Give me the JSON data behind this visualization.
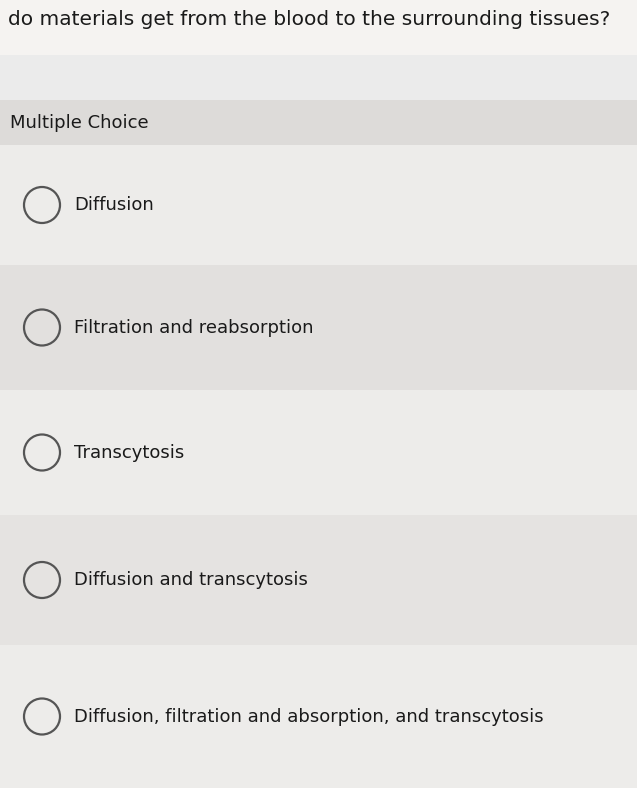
{
  "question_text": "do materials get from the blood to the surrounding tissues?",
  "section_label": "Multiple Choice",
  "choices": [
    "Diffusion",
    "Filtration and reabsorption",
    "Transcytosis",
    "Diffusion and transcytosis",
    "Diffusion, filtration and absorption, and transcytosis"
  ],
  "bg_color_top": "#f2f0ee",
  "bg_color_gap": "#e8e6e4",
  "bg_color_mc_row": "#dddbd9",
  "bg_color_row_light": "#e0dedc",
  "bg_color_row_white": "#edecea",
  "text_color": "#1a1a1a",
  "circle_color": "#555555",
  "question_fontsize": 14.5,
  "label_fontsize": 13,
  "choice_fontsize": 13,
  "fig_width": 6.37,
  "fig_height": 7.88,
  "dpi": 100
}
